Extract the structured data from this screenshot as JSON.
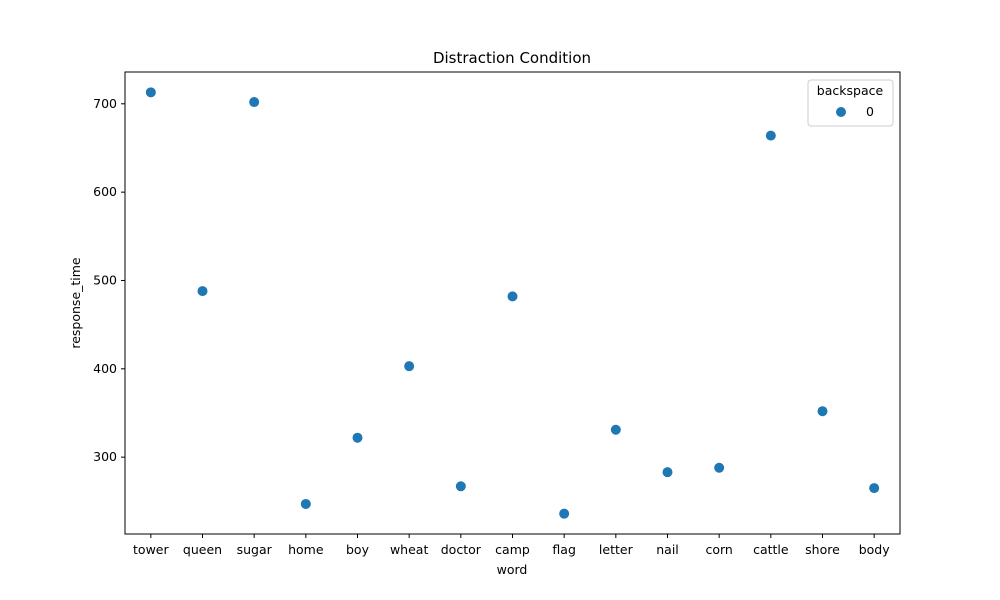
{
  "chart_data": {
    "type": "scatter",
    "title": "Distraction Condition",
    "xlabel": "word",
    "ylabel": "response_time",
    "categories": [
      "tower",
      "queen",
      "sugar",
      "home",
      "boy",
      "wheat",
      "doctor",
      "camp",
      "flag",
      "letter",
      "nail",
      "corn",
      "cattle",
      "shore",
      "body"
    ],
    "series": [
      {
        "name": "0",
        "values": [
          713,
          488,
          702,
          247,
          322,
          403,
          267,
          482,
          236,
          331,
          283,
          288,
          664,
          352,
          265
        ]
      }
    ],
    "ylim": [
      213,
      736
    ],
    "yticks": [
      300,
      400,
      500,
      600,
      700
    ],
    "legend": {
      "title": "backspace",
      "placement": "top-right"
    },
    "grid": false,
    "colors": {
      "point": "#1f77b4"
    }
  }
}
